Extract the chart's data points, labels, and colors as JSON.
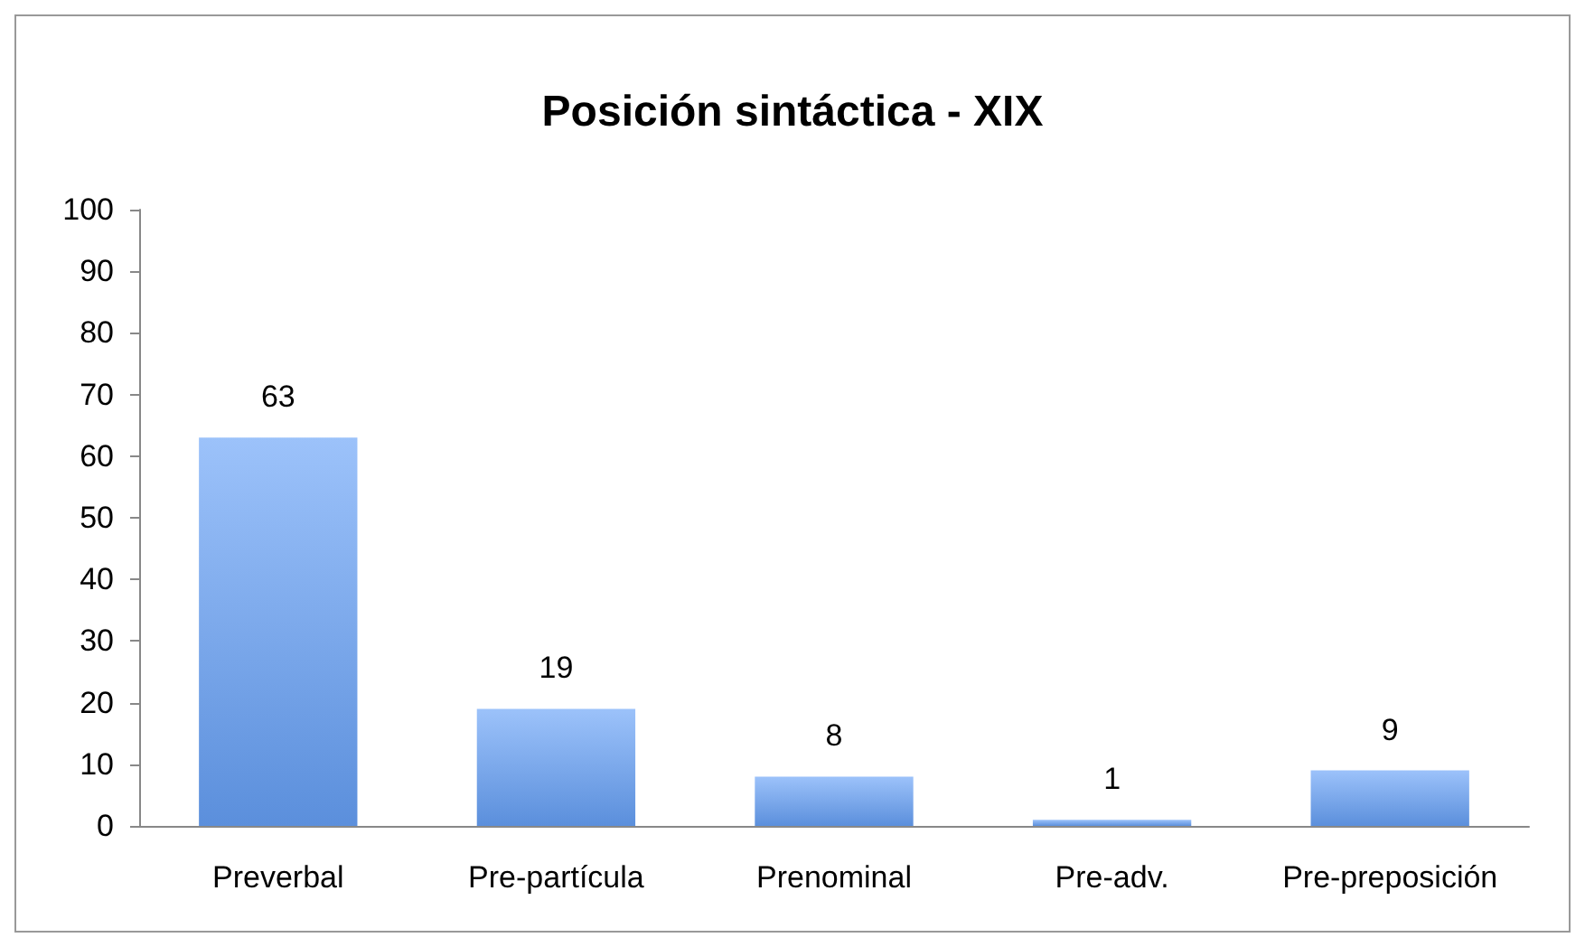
{
  "chart_data": {
    "type": "bar",
    "title": "Posición sintáctica - XIX",
    "categories": [
      "Preverbal",
      "Pre-partícula",
      "Prenominal",
      "Pre-adv.",
      "Pre-preposición"
    ],
    "values": [
      63,
      19,
      8,
      1,
      9
    ],
    "color": "#5b8fdc",
    "ylim": [
      0,
      100
    ],
    "yticks": [
      0,
      10,
      20,
      30,
      40,
      50,
      60,
      70,
      80,
      90,
      100
    ],
    "data_labels": true
  }
}
